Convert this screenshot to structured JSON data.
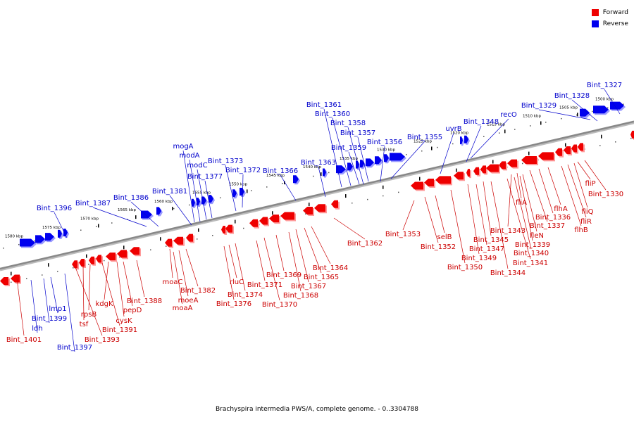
{
  "caption": "Brachyspira intermedia PWS/A, complete genome. - 0..3304788",
  "legend": [
    {
      "label": "Forward",
      "color": "#ee0000"
    },
    {
      "label": "Reverse",
      "color": "#0000ee"
    }
  ],
  "colors": {
    "forward": "#ee0000",
    "reverse": "#0000ee",
    "axis": "#888888",
    "forward_label": "#cc0000",
    "reverse_label": "#0000cc"
  },
  "scale_labels": [
    {
      "text": "1580 kbp"
    },
    {
      "text": "1575 kbp"
    },
    {
      "text": "1570 kbp"
    },
    {
      "text": "1565 kbp"
    },
    {
      "text": "1560 kbp"
    },
    {
      "text": "1555 kbp"
    },
    {
      "text": "1550 kbp"
    },
    {
      "text": "1545 kbp"
    },
    {
      "text": "1540 kbp"
    },
    {
      "text": "1535 kbp"
    },
    {
      "text": "1530 kbp"
    },
    {
      "text": "1525 kbp"
    },
    {
      "text": "1520 kbp"
    },
    {
      "text": "1515 kbp"
    },
    {
      "text": "1510 kbp"
    },
    {
      "text": "1505 kbp"
    },
    {
      "text": "1500 kbp"
    }
  ],
  "reverse_labels": [
    "Bint_1327",
    "Bint_1328",
    "Bint_1329",
    "recO",
    "Bint_1348",
    "uvrB",
    "Bint_1355",
    "Bint_1356",
    "Bint_1357",
    "Bint_1358",
    "Bint_1359",
    "Bint_1360",
    "Bint_1361",
    "Bint_1363",
    "Bint_1366",
    "Bint_1372",
    "Bint_1373",
    "Bint_1377",
    "modC",
    "modA",
    "mogA",
    "Bint_1381",
    "Bint_1386",
    "Bint_1387",
    "Bint_1396",
    "lmp1",
    "Bint_1399",
    "ldh",
    "Bint_1397"
  ],
  "forward_labels": [
    "Bint_1330",
    "fliP",
    "fliQ",
    "fliR",
    "flhB",
    "flhA",
    "Bint_1336",
    "Bint_1337",
    "fliA",
    "Bint_1343",
    "fleN",
    "Bint_1339",
    "Bint_1340",
    "Bint_1341",
    "Bint_1344",
    "Bint_1345",
    "Bint_1347",
    "Bint_1349",
    "Bint_1350",
    "selB",
    "Bint_1352",
    "Bint_1353",
    "Bint_1362",
    "Bint_1364",
    "Bint_1365",
    "Bint_1367",
    "Bint_1368",
    "Bint_1369",
    "Bint_1370",
    "Bint_1371",
    "Bint_1374",
    "rluC",
    "Bint_1376",
    "Bint_1382",
    "moaC",
    "moeA",
    "moaA",
    "Bint_1388",
    "pepD",
    "cysK",
    "kdgK",
    "Bint_1391",
    "rpsB",
    "tsf",
    "Bint_1393",
    "Bint_1401"
  ]
}
